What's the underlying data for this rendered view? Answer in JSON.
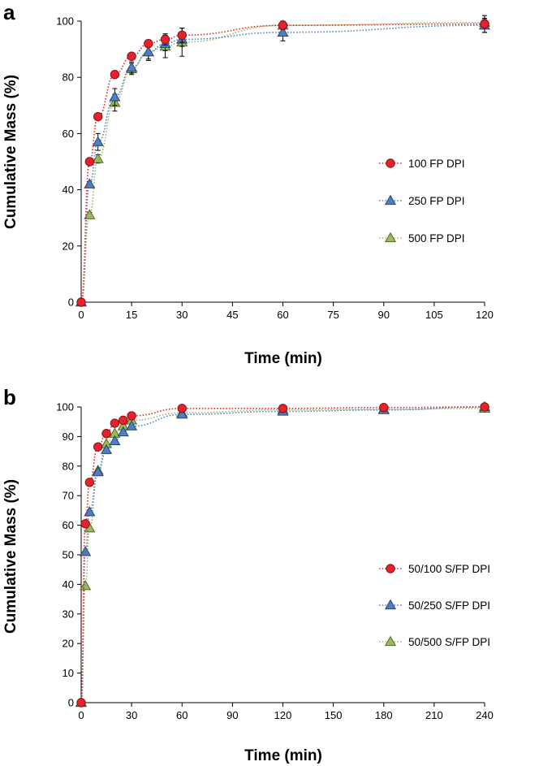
{
  "chart_data": [
    {
      "panel": "a",
      "type": "line",
      "xlabel": "Time (min)",
      "ylabel": "Cumulative Mass (%)",
      "xlim": [
        0,
        120
      ],
      "ylim": [
        0,
        100
      ],
      "xticks": [
        0,
        15,
        30,
        45,
        60,
        75,
        90,
        105,
        120
      ],
      "yticks": [
        0,
        20,
        40,
        60,
        80,
        100
      ],
      "x_tick_labels": [
        "0",
        "15",
        "30",
        "45",
        "60",
        "75",
        "90",
        "105",
        "120"
      ],
      "y_tick_labels": [
        "0",
        "20",
        "40",
        "60",
        "80",
        "100"
      ],
      "legend_position": "right",
      "series": [
        {
          "name": "100 FP DPI",
          "marker": "circle",
          "color": "#e8222a",
          "x": [
            0,
            2.5,
            5,
            10,
            15,
            20,
            25,
            30,
            60,
            120
          ],
          "y": [
            0,
            50,
            66,
            81,
            87.5,
            92,
            93.5,
            95,
            98.5,
            99
          ],
          "err": [
            0,
            1,
            1,
            1,
            1,
            1,
            2,
            2.5,
            1,
            3
          ]
        },
        {
          "name": "250 FP DPI",
          "marker": "triangle",
          "color": "#4c7fc4",
          "x": [
            0,
            2.5,
            5,
            10,
            15,
            20,
            25,
            30,
            60,
            120
          ],
          "y": [
            0,
            42,
            57,
            73,
            83.5,
            89,
            92,
            93.5,
            96,
            98.5
          ],
          "err": [
            0,
            1,
            3,
            3,
            2,
            2.5,
            2.5,
            2.5,
            3,
            2.5
          ]
        },
        {
          "name": "500 FP DPI",
          "marker": "triangle",
          "color": "#9bbb59",
          "x": [
            0,
            2.5,
            5,
            10,
            15,
            20,
            25,
            30,
            60,
            120
          ],
          "y": [
            0,
            31,
            51,
            71,
            83,
            89,
            91,
            92.5,
            98.5,
            99.5
          ],
          "err": [
            0,
            1,
            1.5,
            3,
            2,
            3,
            4,
            5,
            1.5,
            1
          ]
        }
      ]
    },
    {
      "panel": "b",
      "type": "line",
      "xlabel": "Time (min)",
      "ylabel": "Cumulative Mass (%)",
      "xlim": [
        0,
        240
      ],
      "ylim": [
        0,
        100
      ],
      "xticks": [
        0,
        30,
        60,
        90,
        120,
        150,
        180,
        210,
        240
      ],
      "yticks": [
        0,
        10,
        20,
        30,
        40,
        50,
        60,
        70,
        80,
        90,
        100
      ],
      "x_tick_labels": [
        "0",
        "30",
        "60",
        "90",
        "120",
        "150",
        "180",
        "210",
        "240"
      ],
      "y_tick_labels": [
        "0",
        "10",
        "20",
        "30",
        "40",
        "50",
        "60",
        "70",
        "80",
        "90",
        "100"
      ],
      "legend_position": "right",
      "series": [
        {
          "name": "50/100 S/FP DPI",
          "marker": "circle",
          "color": "#e8222a",
          "x": [
            0,
            2.5,
            5,
            10,
            15,
            20,
            25,
            30,
            60,
            120,
            180,
            240
          ],
          "y": [
            0,
            60.5,
            74.5,
            86.5,
            91,
            94.5,
            95.5,
            97,
            99.5,
            99.5,
            99.8,
            100
          ],
          "err": [
            0,
            0,
            0,
            0,
            0,
            0,
            0,
            0,
            0,
            0,
            0,
            0
          ]
        },
        {
          "name": "50/250 S/FP DPI",
          "marker": "triangle",
          "color": "#4c7fc4",
          "x": [
            0,
            2.5,
            5,
            10,
            15,
            20,
            25,
            30,
            60,
            120,
            180,
            240
          ],
          "y": [
            0,
            51,
            64.5,
            78,
            85.5,
            88.5,
            91.5,
            93.5,
            97.5,
            98.5,
            99,
            100
          ],
          "err": [
            0,
            0,
            0,
            0,
            0,
            0,
            0,
            0,
            0,
            0,
            0,
            0
          ]
        },
        {
          "name": "50/500 S/FP DPI",
          "marker": "triangle",
          "color": "#9bbb59",
          "x": [
            0,
            2.5,
            5,
            10,
            15,
            20,
            25,
            30,
            60,
            120,
            180,
            240
          ],
          "y": [
            0,
            39.5,
            59,
            78.5,
            87.5,
            91,
            93.5,
            95.5,
            98,
            99,
            99.2,
            99.5
          ],
          "err": [
            0,
            0,
            0,
            0,
            0,
            0,
            0,
            0,
            0,
            0,
            0,
            0
          ]
        }
      ]
    }
  ]
}
